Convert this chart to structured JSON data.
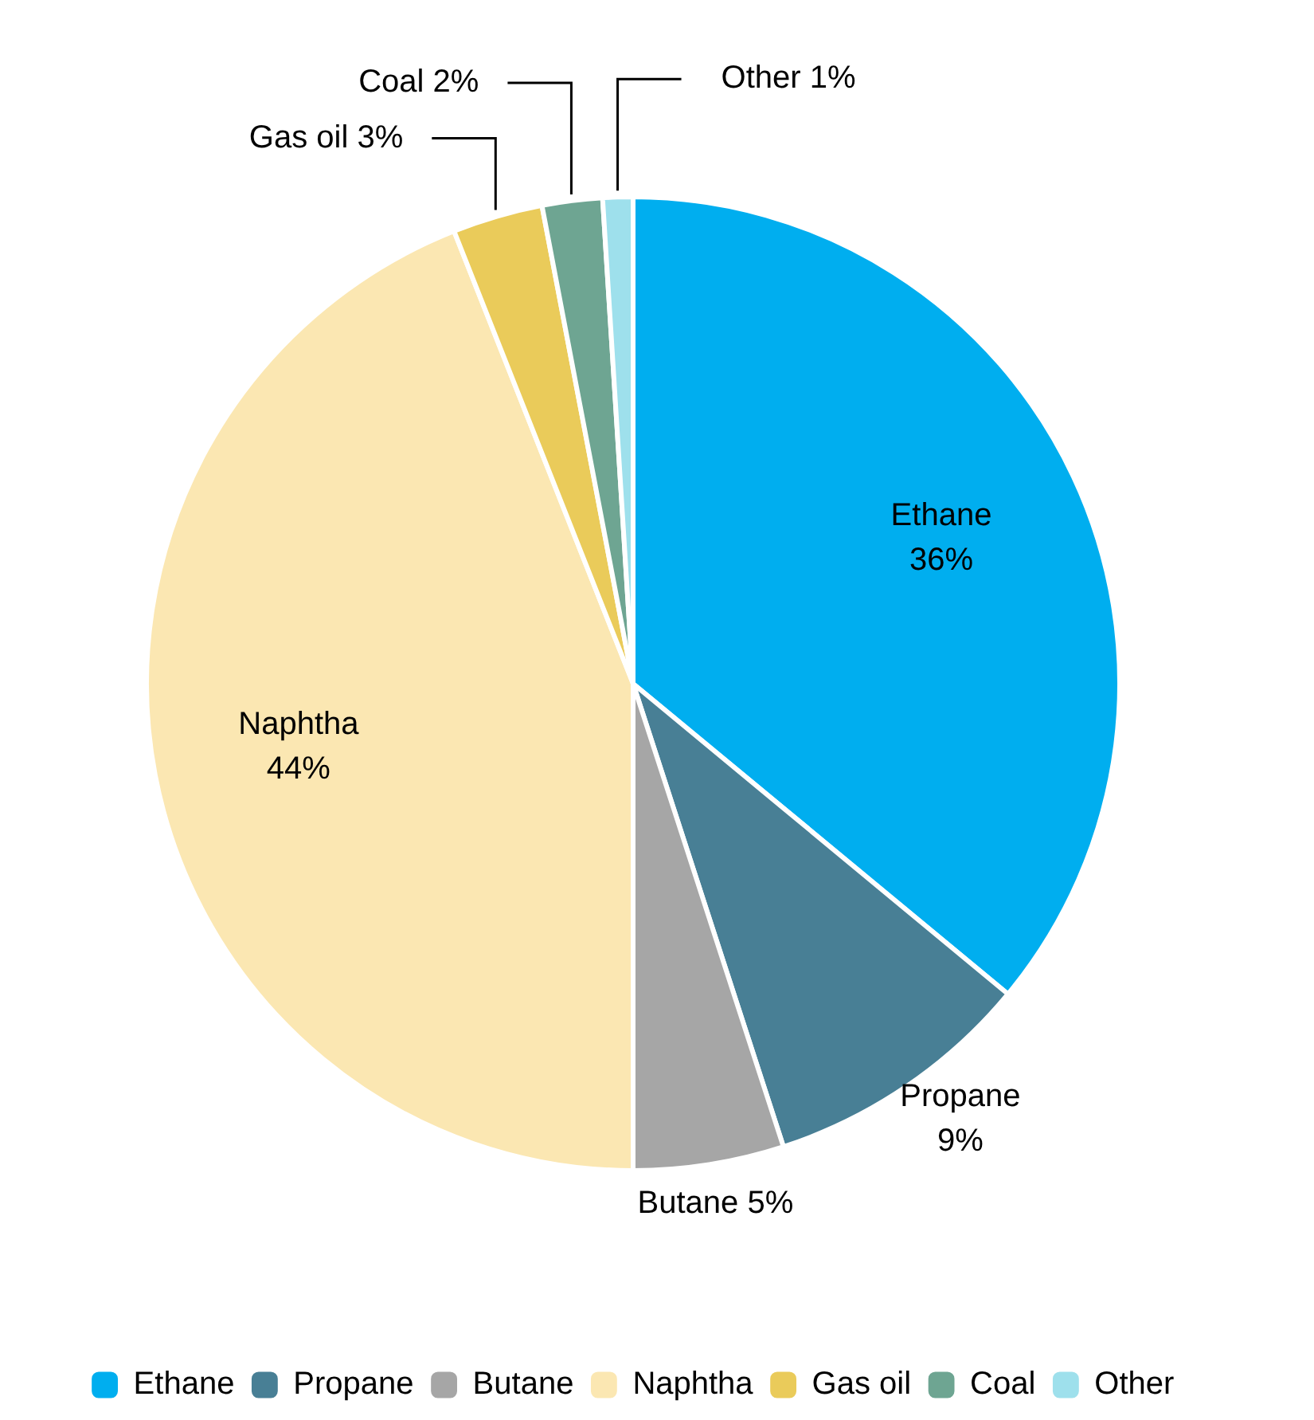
{
  "chart_data": {
    "type": "pie",
    "categories": [
      "Ethane",
      "Propane",
      "Butane",
      "Naphtha",
      "Gas oil",
      "Coal",
      "Other"
    ],
    "values": [
      36,
      9,
      5,
      44,
      3,
      2,
      1
    ],
    "value_labels": [
      "36%",
      "9%",
      "5%",
      "44%",
      "3%",
      "2%",
      "1%"
    ],
    "colors": [
      "#00aeef",
      "#487f95",
      "#a6a6a6",
      "#fbe7b2",
      "#eacb5a",
      "#6ea592",
      "#9ee0ec"
    ],
    "legend": "bottom"
  }
}
